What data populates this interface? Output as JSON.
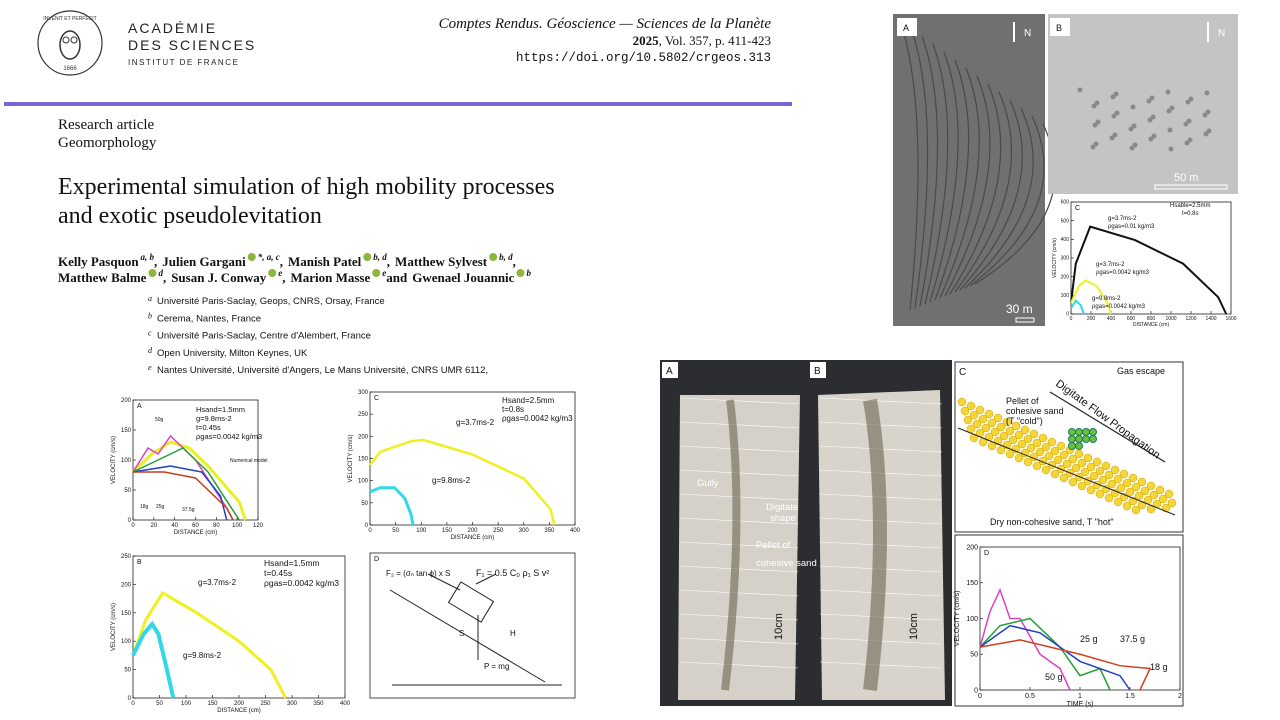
{
  "header": {
    "logo_motto": "INVENIT ET PERFECIT",
    "logo_year": "1666",
    "org_line1": "ACADÉMIE",
    "org_line2": "DES SCIENCES",
    "org_line3": "INSTITUT DE FRANCE"
  },
  "journal": {
    "name": "Comptes Rendus. Géoscience — Sciences de la Planète",
    "year": "2025",
    "volume": ", Vol. 357, p. 411-423",
    "doi": "https://doi.org/10.5802/crgeos.313"
  },
  "article": {
    "type": "Research article",
    "subject": "Geomorphology",
    "title_lines": [
      "Experimental simulation of high mobility processes",
      "and exotic pseudolevitation"
    ],
    "author_lines": [
      [
        {
          "name": "Kelly Pasquon",
          "sup": "a, b",
          "sep": ","
        },
        {
          "name": "Julien Gargani",
          "orcid": true,
          "sup": "*, a, c",
          "sep": ","
        },
        {
          "name": "Manish Patel",
          "orcid": true,
          "sup": "b, d",
          "sep": ","
        },
        {
          "name": "Matthew Sylvest",
          "orcid": true,
          "sup": "b, d",
          "sep": ","
        }
      ],
      [
        {
          "name": "Matthew Balme",
          "orcid": true,
          "sup": "d",
          "sep": ","
        },
        {
          "name": "Susan J. Conway",
          "orcid": true,
          "sup": "e",
          "sep": ","
        },
        {
          "name": "Marion Masse",
          "orcid": true,
          "sup": "e",
          "sep": " and"
        },
        {
          "name": "Gwenael Jouannic",
          "orcid": true,
          "sup": "b"
        }
      ]
    ],
    "affiliations": [
      {
        "letter": "a",
        "text": "Université Paris-Saclay, Geops, CNRS, Orsay, France"
      },
      {
        "letter": "b",
        "text": "Cerema, Nantes, France"
      },
      {
        "letter": "c",
        "text": "Université Paris-Saclay, Centre d'Alembert, France"
      },
      {
        "letter": "d",
        "text": "Open University, Milton Keynes, UK"
      },
      {
        "letter": "e",
        "text": "Nantes Université, Université d'Angers, Le Mans Université, CNRS UMR 6112,"
      }
    ]
  },
  "figure_left": {
    "panels": [
      {
        "label": "A",
        "params": [
          "Hsand=1.5mm",
          "g=9.8ms-2",
          "t=0.45s",
          "ρgas=0.0042 kg/m3"
        ],
        "notes": [
          "50g",
          "18g",
          "25g",
          "37.5g",
          "Numerical model"
        ],
        "ylabel": "VELOCITY (cm/s)",
        "xlabel": "DISTANCE (cm)",
        "xticks": [
          0,
          20,
          40,
          60,
          80,
          100,
          120
        ],
        "yticks": [
          0,
          50,
          100,
          150,
          200
        ]
      },
      {
        "label": "C",
        "params": [
          "Hsand=2.5mm",
          "t=0.8s",
          "ρgas=0.0042 kg/m3"
        ],
        "notes": [
          "g=3.7ms-2",
          "g=9.8ms-2"
        ],
        "ylabel": "VELOCITY (cm/s)",
        "xlabel": "DISTANCE (cm)",
        "xticks": [
          0,
          50,
          100,
          150,
          200,
          250,
          300,
          350,
          400
        ],
        "yticks": [
          0,
          50,
          100,
          150,
          200,
          250,
          300
        ]
      },
      {
        "label": "B",
        "params": [
          "Hsand=1.5mm",
          "t=0.45s",
          "ρgas=0.0042 kg/m3"
        ],
        "notes": [
          "g=3.7ms-2",
          "g=9.8ms-2"
        ],
        "ylabel": "VELOCITY (cm/s)",
        "xlabel": "DISTANCE (cm)",
        "xticks": [
          0,
          50,
          100,
          150,
          200,
          250,
          300,
          350,
          400
        ],
        "yticks": [
          0,
          50,
          100,
          150,
          200,
          250
        ]
      },
      {
        "label": "D",
        "notes": [
          "F₁ = 0.5 C₀ ρ₁ S v²",
          "F₂ = (σₙ tan ϕ) x S",
          "S",
          "H",
          "P = mg"
        ]
      }
    ]
  },
  "figure_top_right": {
    "A": {
      "label": "A",
      "north": "N",
      "scale": "30 m"
    },
    "B": {
      "label": "B",
      "north": "N",
      "scale": "50 m"
    },
    "C": {
      "label": "C",
      "params": [
        "Hsable=2.5mm",
        "t=0.8s"
      ],
      "notes": [
        "g=3.7ms-2",
        "ρgas=0.01 kg/m3",
        "g=3.7ms-2",
        "ρgas=0.0042 kg/m3",
        "g=9.8ms-2",
        "ρgas=0.0042 kg/m3"
      ],
      "ylabel": "VELOCITY (cm/s)",
      "xlabel": "DISTANCE (cm)",
      "xticks": [
        0,
        200,
        400,
        600,
        800,
        1000,
        1200,
        1400,
        1600
      ],
      "yticks": [
        0,
        100,
        200,
        300,
        400,
        500,
        600
      ]
    }
  },
  "figure_bottom": {
    "photo": {
      "labels": [
        "A",
        "B"
      ],
      "notes": [
        "Gully",
        "Digitate",
        "shape",
        "Pellet of",
        "cohesive sand",
        "10cm",
        "10cm"
      ]
    },
    "diagram": {
      "label": "C",
      "notes": [
        "Gas escape",
        "Digitate Flow Propagation",
        "Pellet of",
        "cohesive sand",
        "(T \"cold\")",
        "Dry non-cohesive sand, T \"hot\""
      ]
    },
    "chart": {
      "label": "D",
      "notes": [
        "25 g",
        "37.5 g",
        "18 g",
        "50 g"
      ],
      "ylabel": "VELOCITY (cm/s)",
      "xlabel": "TIME (s)",
      "xticks": [
        0,
        0.5,
        1,
        1.5,
        2
      ],
      "yticks": [
        0,
        50,
        100,
        150,
        200
      ]
    }
  }
}
